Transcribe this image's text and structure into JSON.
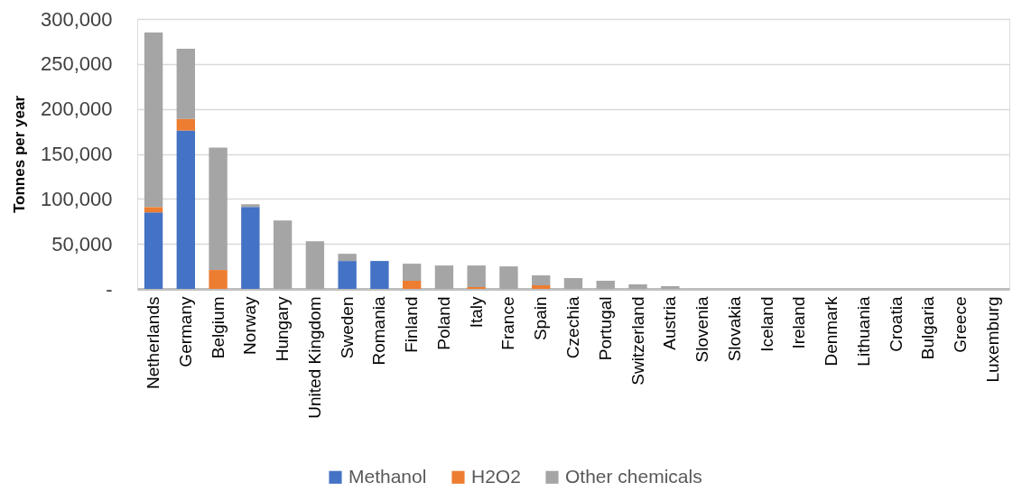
{
  "chart_data": {
    "type": "bar",
    "stacked": true,
    "ylabel": "Tonnes per year",
    "categories": [
      "Netherlands",
      "Germany",
      "Belgium",
      "Norway",
      "Hungary",
      "United Kingdom",
      "Sweden",
      "Romania",
      "Finland",
      "Poland",
      "Italy",
      "France",
      "Spain",
      "Czechia",
      "Portugal",
      "Switzerland",
      "Austria",
      "Slovenia",
      "Slovakia",
      "Iceland",
      "Ireland",
      "Denmark",
      "Lithuania",
      "Croatia",
      "Bulgaria",
      "Greece",
      "Luxemburg"
    ],
    "series": [
      {
        "name": "Methanol",
        "color": "#4472c4",
        "values": [
          85000,
          176000,
          null,
          91000,
          null,
          null,
          31000,
          31000,
          null,
          null,
          null,
          null,
          null,
          null,
          null,
          null,
          null,
          null,
          null,
          null,
          null,
          null,
          null,
          null,
          null,
          null,
          null
        ]
      },
      {
        "name": "H2O2",
        "color": "#ed7d31",
        "values": [
          6000,
          13000,
          21000,
          null,
          null,
          null,
          null,
          null,
          9000,
          null,
          2000,
          null,
          4000,
          null,
          null,
          null,
          null,
          null,
          null,
          null,
          null,
          null,
          null,
          null,
          null,
          null,
          null
        ]
      },
      {
        "name": "Other chemicals",
        "color": "#a5a5a5",
        "values": [
          194000,
          78000,
          136000,
          3000,
          76000,
          53000,
          8000,
          null,
          19000,
          26000,
          24000,
          25000,
          11000,
          12000,
          9000,
          5000,
          3000,
          null,
          null,
          null,
          null,
          null,
          null,
          null,
          null,
          null,
          null
        ]
      }
    ],
    "ylim": [
      0,
      300000
    ],
    "yticks": [
      {
        "value": 0,
        "label": "-"
      },
      {
        "value": 50000,
        "label": "50,000"
      },
      {
        "value": 100000,
        "label": "100,000"
      },
      {
        "value": 150000,
        "label": "150,000"
      },
      {
        "value": 200000,
        "label": "200,000"
      },
      {
        "value": 250000,
        "label": "250,000"
      },
      {
        "value": 300000,
        "label": "300,000"
      }
    ],
    "grid": "y",
    "legend": "bottom"
  }
}
